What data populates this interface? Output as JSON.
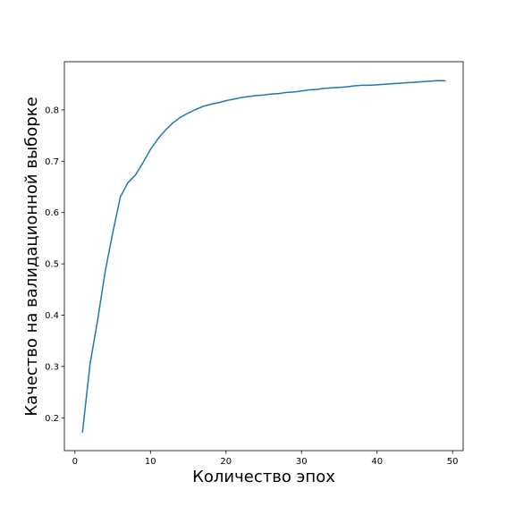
{
  "chart_data": {
    "type": "line",
    "xlabel": "Количество эпох",
    "ylabel": "Качество на валидационной выборке",
    "xlim": [
      -1.4,
      51.4
    ],
    "ylim": [
      0.136,
      0.894
    ],
    "grid": false,
    "line_color": "#1f77b4",
    "x_ticks": [
      0,
      10,
      20,
      30,
      40,
      50
    ],
    "y_ticks": [
      0.2,
      0.3,
      0.4,
      0.5,
      0.6,
      0.7,
      0.8
    ],
    "x_tick_labels": [
      "0",
      "10",
      "20",
      "30",
      "40",
      "50"
    ],
    "y_tick_labels": [
      "0.2",
      "0.3",
      "0.4",
      "0.5",
      "0.6",
      "0.7",
      "0.8"
    ],
    "series": [
      {
        "x": [
          1,
          2,
          3,
          4,
          5,
          6,
          7,
          8,
          9,
          10,
          11,
          12,
          13,
          14,
          15,
          16,
          17,
          18,
          19,
          20,
          21,
          22,
          23,
          24,
          25,
          26,
          27,
          28,
          29,
          30,
          31,
          32,
          33,
          34,
          35,
          36,
          37,
          38,
          39,
          40,
          41,
          42,
          43,
          44,
          45,
          46,
          47,
          48,
          49
        ],
        "y": [
          0.172,
          0.305,
          0.39,
          0.485,
          0.56,
          0.63,
          0.658,
          0.673,
          0.697,
          0.723,
          0.744,
          0.761,
          0.775,
          0.786,
          0.794,
          0.801,
          0.807,
          0.811,
          0.814,
          0.818,
          0.821,
          0.824,
          0.826,
          0.828,
          0.829,
          0.831,
          0.832,
          0.834,
          0.835,
          0.837,
          0.839,
          0.84,
          0.842,
          0.843,
          0.844,
          0.845,
          0.847,
          0.848,
          0.848,
          0.849,
          0.85,
          0.851,
          0.852,
          0.853,
          0.854,
          0.855,
          0.856,
          0.857,
          0.857
        ]
      }
    ]
  }
}
